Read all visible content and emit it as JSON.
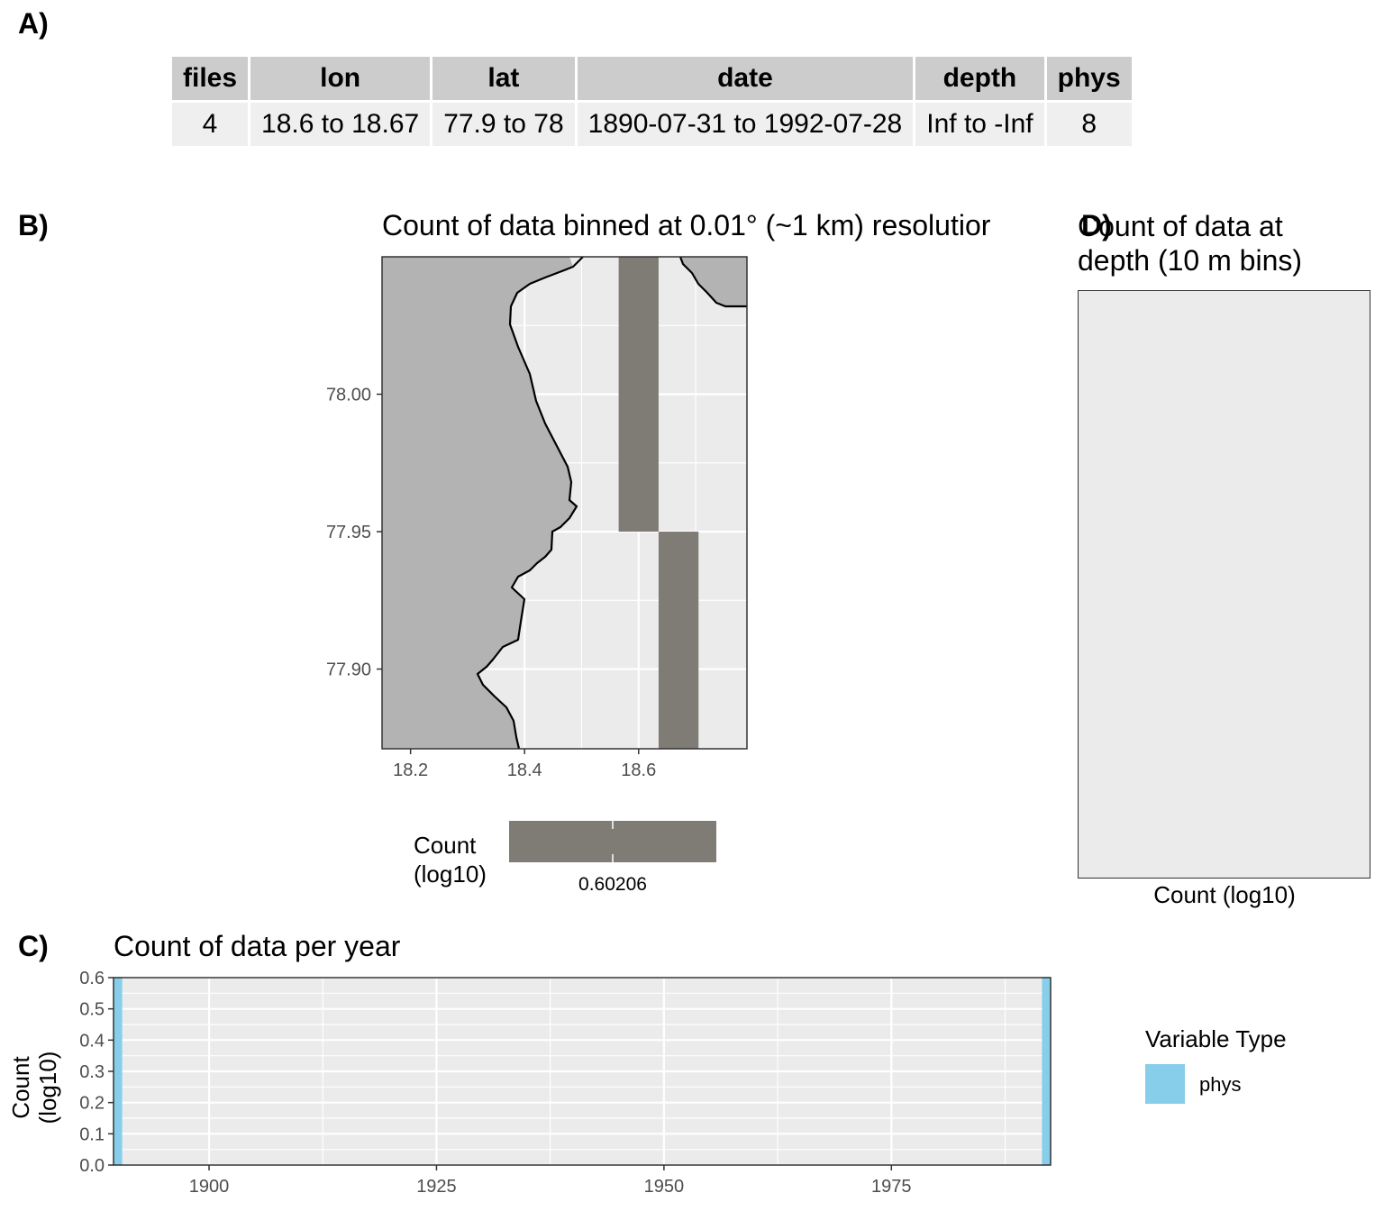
{
  "panels": {
    "a": "A)",
    "b": "B)",
    "c": "C)",
    "d": "D)"
  },
  "summary_table": {
    "headers": [
      "files",
      "lon",
      "lat",
      "date",
      "depth",
      "phys"
    ],
    "row": [
      "4",
      "18.6 to 18.67",
      "77.9 to 78",
      "1890-07-31 to 1992-07-28",
      "Inf to -Inf",
      "8"
    ]
  },
  "map": {
    "title": "Count of data binned at 0.01° (~1 km) resolutior",
    "legend_title_line1": "Count",
    "legend_title_line2": "(log10)",
    "legend_label": "0.60206"
  },
  "depth": {
    "title_line1": "Count of data at",
    "title_line2": "depth (10 m bins)",
    "xlabel": "Count (log10)"
  },
  "year": {
    "title": "Count of data per year",
    "ylabel_line1": "Count",
    "ylabel_line2": "(log10)"
  },
  "year_legend": {
    "title": "Variable Type",
    "items": [
      {
        "label": "phys",
        "color": "#87CEEB"
      }
    ]
  },
  "chart_data": [
    {
      "type": "heatmap",
      "title": "Count of data binned at 0.01° (~1 km) resolutior",
      "xlabel": "",
      "ylabel": "",
      "xlim": [
        18.15,
        18.79
      ],
      "ylim": [
        77.871,
        78.05
      ],
      "x_ticks": [
        18.2,
        18.4,
        18.6
      ],
      "y_ticks": [
        77.9,
        77.95,
        78.0
      ],
      "y_tick_labels": [
        "77.90",
        "77.95",
        "78.00"
      ],
      "cells": [
        {
          "lon": [
            18.565,
            18.635
          ],
          "lat": [
            77.95,
            78.05
          ],
          "value": 0.60206
        },
        {
          "lon": [
            18.635,
            18.705
          ],
          "lat": [
            77.871,
            77.95
          ],
          "value": 0.60206
        }
      ],
      "fill_color": "#7f7c75",
      "land_color": "#b3b3b3",
      "colorbar": {
        "title": "Count (log10)",
        "labels": [
          "0.60206"
        ]
      },
      "grid": true
    },
    {
      "type": "bar",
      "title": "Count of data at depth (10 m bins)",
      "xlabel": "Count (log10)",
      "values": []
    },
    {
      "type": "bar",
      "title": "Count of data per year",
      "xlabel": "",
      "ylabel": "Count (log10)",
      "xlim": [
        1889.5,
        1992.5
      ],
      "ylim": [
        0,
        0.6
      ],
      "x_ticks": [
        1900,
        1925,
        1950,
        1975
      ],
      "y_ticks": [
        0.0,
        0.1,
        0.2,
        0.3,
        0.4,
        0.5,
        0.6
      ],
      "y_tick_labels": [
        "0.0",
        "0.1",
        "0.2",
        "0.3",
        "0.4",
        "0.5",
        "0.6"
      ],
      "series": [
        {
          "name": "phys",
          "color": "#87CEEB",
          "x": [
            1890,
            1992
          ],
          "values": [
            0.60206,
            0.60206
          ]
        }
      ],
      "grid": true,
      "legend": "right"
    }
  ]
}
